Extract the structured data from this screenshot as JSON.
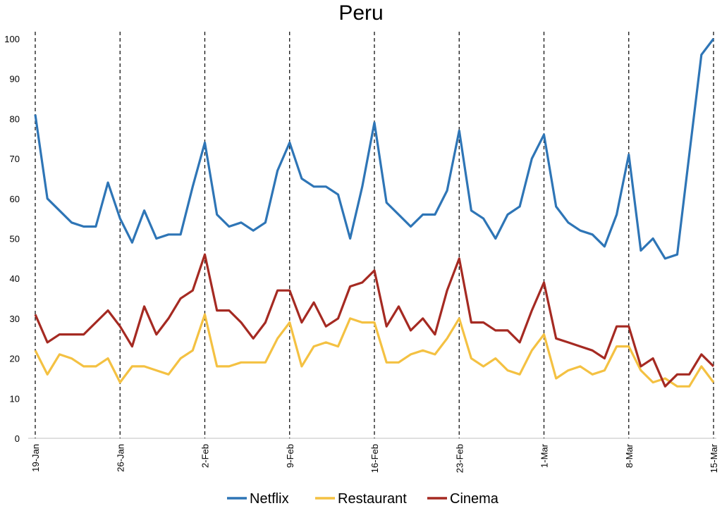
{
  "chart_data": {
    "type": "line",
    "title": "Peru",
    "xlabel": "",
    "ylabel": "",
    "ylim": [
      0,
      100
    ],
    "yticks": [
      0,
      10,
      20,
      30,
      40,
      50,
      60,
      70,
      80,
      90,
      100
    ],
    "grid": false,
    "legend": "bottom",
    "x": [
      "19-Jan",
      "20-Jan",
      "21-Jan",
      "22-Jan",
      "23-Jan",
      "24-Jan",
      "25-Jan",
      "26-Jan",
      "27-Jan",
      "28-Jan",
      "29-Jan",
      "30-Jan",
      "31-Jan",
      "1-Feb",
      "2-Feb",
      "3-Feb",
      "4-Feb",
      "5-Feb",
      "6-Feb",
      "7-Feb",
      "8-Feb",
      "9-Feb",
      "10-Feb",
      "11-Feb",
      "12-Feb",
      "13-Feb",
      "14-Feb",
      "15-Feb",
      "16-Feb",
      "17-Feb",
      "18-Feb",
      "19-Feb",
      "20-Feb",
      "21-Feb",
      "22-Feb",
      "23-Feb",
      "24-Feb",
      "25-Feb",
      "26-Feb",
      "27-Feb",
      "28-Feb",
      "29-Feb",
      "1-Mar",
      "2-Mar",
      "3-Mar",
      "4-Mar",
      "5-Mar",
      "6-Mar",
      "7-Mar",
      "8-Mar",
      "9-Mar",
      "10-Mar",
      "11-Mar",
      "12-Mar",
      "13-Mar",
      "14-Mar",
      "15-Mar"
    ],
    "xtick_labels": [
      "19-Jan",
      "26-Jan",
      "2-Feb",
      "9-Feb",
      "16-Feb",
      "23-Feb",
      "1-Mar",
      "8-Mar",
      "15-Mar"
    ],
    "series": [
      {
        "name": "Netflix",
        "color": "#2E75B6",
        "values": [
          81,
          60,
          57,
          54,
          53,
          53,
          64,
          55,
          49,
          57,
          50,
          51,
          51,
          63,
          74,
          56,
          53,
          54,
          52,
          54,
          67,
          74,
          65,
          63,
          63,
          61,
          50,
          63,
          79,
          59,
          56,
          53,
          56,
          56,
          62,
          77,
          57,
          55,
          50,
          56,
          58,
          70,
          76,
          58,
          54,
          52,
          51,
          48,
          56,
          71,
          47,
          50,
          45,
          46,
          71,
          96,
          100
        ]
      },
      {
        "name": "Restaurant",
        "color": "#F4C142",
        "values": [
          22,
          16,
          21,
          20,
          18,
          18,
          20,
          14,
          18,
          18,
          17,
          16,
          20,
          22,
          31,
          18,
          18,
          19,
          19,
          19,
          25,
          29,
          18,
          23,
          24,
          23,
          30,
          29,
          29,
          19,
          19,
          21,
          22,
          21,
          25,
          30,
          20,
          18,
          20,
          17,
          16,
          22,
          26,
          15,
          17,
          18,
          16,
          17,
          23,
          23,
          17,
          14,
          15,
          13,
          13,
          18,
          14
        ]
      },
      {
        "name": "Cinema",
        "color": "#A52A22",
        "values": [
          31,
          24,
          26,
          26,
          26,
          29,
          32,
          28,
          23,
          33,
          26,
          30,
          35,
          37,
          46,
          32,
          32,
          29,
          25,
          29,
          37,
          37,
          29,
          34,
          28,
          30,
          38,
          39,
          42,
          28,
          33,
          27,
          30,
          26,
          37,
          45,
          29,
          29,
          27,
          27,
          24,
          32,
          39,
          25,
          24,
          23,
          22,
          20,
          28,
          28,
          18,
          20,
          13,
          16,
          16,
          21,
          18
        ]
      }
    ]
  }
}
